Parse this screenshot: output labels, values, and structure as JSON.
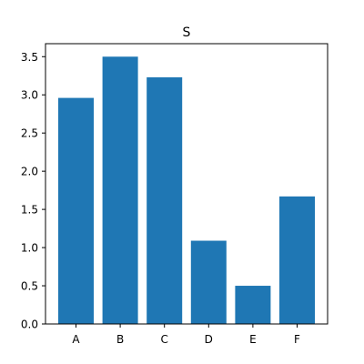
{
  "chart_data": {
    "type": "bar",
    "title": "S",
    "categories": [
      "A",
      "B",
      "C",
      "D",
      "E",
      "F"
    ],
    "values": [
      2.96,
      3.5,
      3.23,
      1.09,
      0.5,
      1.67
    ],
    "ylim": [
      0,
      3.67
    ],
    "yticks": [
      0.0,
      0.5,
      1.0,
      1.5,
      2.0,
      2.5,
      3.0,
      3.5
    ],
    "ytick_labels": [
      "0.0",
      "0.5",
      "1.0",
      "1.5",
      "2.0",
      "2.5",
      "3.0",
      "3.5"
    ],
    "bar_color": "#1f77b4",
    "grid": false,
    "xlabel": "",
    "ylabel": ""
  }
}
